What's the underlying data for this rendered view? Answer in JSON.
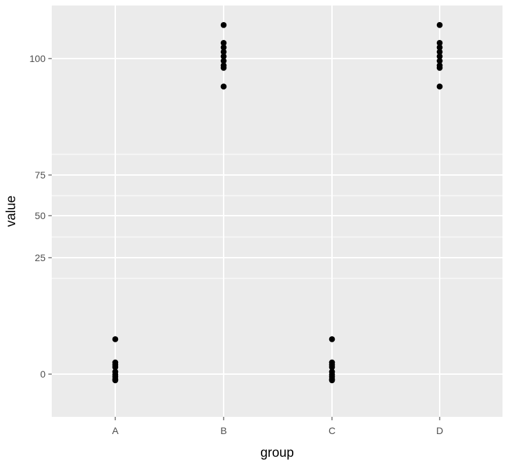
{
  "chart_data": {
    "type": "scatter",
    "xlabel": "group",
    "ylabel": "value",
    "categories": [
      "A",
      "B",
      "C",
      "D"
    ],
    "y_scale": "piecewise-linear (broken axis: 0–25 and 75–100 compressed differently)",
    "y_ticks": [
      0,
      25,
      50,
      75,
      100
    ],
    "y_tick_labels": [
      "0",
      "25",
      "50",
      "75",
      "100"
    ],
    "grid": true,
    "legend": "none",
    "colors": {
      "panel": "#ebebeb",
      "grid": "#ffffff",
      "point": "#000000",
      "tick_text": "#4d4d4d"
    },
    "points": [
      {
        "group": "A",
        "y": 7.5
      },
      {
        "group": "A",
        "y": 2.5
      },
      {
        "group": "A",
        "y": 2.0
      },
      {
        "group": "A",
        "y": 1.5
      },
      {
        "group": "A",
        "y": 0.5
      },
      {
        "group": "A",
        "y": -0.5
      },
      {
        "group": "A",
        "y": -2.5
      },
      {
        "group": "A",
        "y": -5.0
      },
      {
        "group": "A",
        "y": -6.0
      },
      {
        "group": "B",
        "y": 107.5
      },
      {
        "group": "B",
        "y": 103.5
      },
      {
        "group": "B",
        "y": 102.5
      },
      {
        "group": "B",
        "y": 101.5
      },
      {
        "group": "B",
        "y": 100.5
      },
      {
        "group": "B",
        "y": 99.5
      },
      {
        "group": "B",
        "y": 98.5
      },
      {
        "group": "B",
        "y": 98.0
      },
      {
        "group": "B",
        "y": 94.0
      },
      {
        "group": "C",
        "y": 7.5
      },
      {
        "group": "C",
        "y": 2.5
      },
      {
        "group": "C",
        "y": 2.0
      },
      {
        "group": "C",
        "y": 1.5
      },
      {
        "group": "C",
        "y": 0.5
      },
      {
        "group": "C",
        "y": -0.5
      },
      {
        "group": "C",
        "y": -2.5
      },
      {
        "group": "C",
        "y": -5.0
      },
      {
        "group": "C",
        "y": -6.0
      },
      {
        "group": "D",
        "y": 107.5
      },
      {
        "group": "D",
        "y": 103.5
      },
      {
        "group": "D",
        "y": 102.5
      },
      {
        "group": "D",
        "y": 101.5
      },
      {
        "group": "D",
        "y": 100.5
      },
      {
        "group": "D",
        "y": 99.5
      },
      {
        "group": "D",
        "y": 98.5
      },
      {
        "group": "D",
        "y": 98.0
      },
      {
        "group": "D",
        "y": 94.0
      }
    ]
  }
}
